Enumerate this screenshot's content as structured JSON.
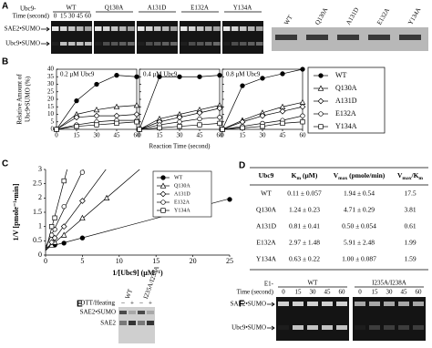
{
  "chart_data": [
    {
      "type": "line",
      "ylabel": [
        "Relative Amount of",
        "Ubc9•SUMO (%)"
      ],
      "xlabel": "Reaction Time (second)",
      "x": [
        0,
        15,
        30,
        45,
        60
      ],
      "xlim": [
        0,
        60
      ],
      "xticks": [
        0,
        15,
        30,
        45,
        60
      ],
      "ylim": [
        0,
        40
      ],
      "yticks": [
        0,
        5,
        10,
        15,
        20,
        25,
        30,
        35,
        40
      ],
      "legend": [
        {
          "name": "WT",
          "marker": "circle-filled"
        },
        {
          "name": "Q130A",
          "marker": "triangle"
        },
        {
          "name": "A131D",
          "marker": "diamond"
        },
        {
          "name": "E132A",
          "marker": "circle"
        },
        {
          "name": "Y134A",
          "marker": "square"
        }
      ],
      "panels": [
        {
          "title": "0.2 μM Ubc9",
          "series": [
            {
              "values": [
                0,
                19,
                30,
                36,
                35
              ]
            },
            {
              "values": [
                0,
                10,
                13,
                15,
                16
              ]
            },
            {
              "values": [
                0,
                8,
                9,
                9,
                10
              ]
            },
            {
              "values": [
                0,
                3,
                5,
                6,
                6
              ]
            },
            {
              "values": [
                0,
                2,
                3,
                4,
                5
              ]
            }
          ]
        },
        {
          "title": "0.4 μM Ubc9",
          "series": [
            {
              "values": [
                0,
                35,
                35,
                35,
                36
              ]
            },
            {
              "values": [
                0,
                7,
                10,
                13,
                16
              ]
            },
            {
              "values": [
                0,
                5,
                8,
                11,
                14
              ]
            },
            {
              "values": [
                0,
                3,
                5,
                7,
                8
              ]
            },
            {
              "values": [
                0,
                1,
                2,
                3,
                4
              ]
            }
          ]
        },
        {
          "title": "0.8 μM Ubc9",
          "series": [
            {
              "values": [
                0,
                29,
                34,
                37,
                40
              ]
            },
            {
              "values": [
                0,
                6,
                11,
                15,
                18
              ]
            },
            {
              "values": [
                0,
                5,
                9,
                12,
                15
              ]
            },
            {
              "values": [
                0,
                2,
                4,
                6,
                9
              ]
            },
            {
              "values": [
                0,
                1,
                2,
                4,
                5
              ]
            }
          ]
        }
      ]
    },
    {
      "type": "scatter",
      "ylabel": "1/V [pmole⁻¹•min]",
      "xlabel": "1/[Ubc9] (μM⁻¹)",
      "xlim": [
        0,
        25
      ],
      "xticks": [
        0,
        5,
        10,
        15,
        20,
        25
      ],
      "ylim": [
        0,
        3
      ],
      "yticks": [
        0,
        0.5,
        1,
        1.5,
        2,
        2.5,
        3
      ],
      "trendline": true,
      "series": [
        {
          "name": "WT",
          "marker": "circle-filled",
          "x": [
            1.25,
            2.5,
            5,
            16.7,
            25
          ],
          "values": [
            0.35,
            0.42,
            0.6,
            1.45,
            1.95
          ]
        },
        {
          "name": "Q130A",
          "marker": "triangle",
          "x": [
            0.83,
            1.25,
            2.5,
            5,
            8.3
          ],
          "values": [
            0.35,
            0.45,
            0.7,
            1.3,
            2.0
          ]
        },
        {
          "name": "A131D",
          "marker": "diamond",
          "x": [
            0.83,
            1.25,
            2.5,
            5
          ],
          "values": [
            0.45,
            0.6,
            1.0,
            1.9
          ]
        },
        {
          "name": "E132A",
          "marker": "circle",
          "x": [
            0.83,
            1.25,
            2.5,
            5
          ],
          "values": [
            0.7,
            0.9,
            1.7,
            2.9
          ]
        },
        {
          "name": "Y134A",
          "marker": "square",
          "x": [
            0.83,
            1.25,
            2.5
          ],
          "values": [
            1.0,
            1.3,
            2.6
          ]
        }
      ]
    }
  ],
  "panel_letters": {
    "A": "A",
    "B": "B",
    "C": "C",
    "D": "D",
    "E": "E",
    "F": "F"
  },
  "gel_a": {
    "prefix": "Ubc9-",
    "time_label": "Time (second)",
    "times": [
      "0",
      "15",
      "30",
      "45",
      "60"
    ],
    "groups": [
      "WT",
      "Q130A",
      "A131D",
      "E132A",
      "Y134A"
    ],
    "bands": [
      "SAE2•SUMO",
      "Ubc9•SUMO"
    ],
    "side_lanes": [
      "WT",
      "Q130A",
      "A131D",
      "E132A",
      "Y134A"
    ]
  },
  "table": {
    "header": [
      [
        {
          "t": "Ubc9"
        }
      ],
      [
        {
          "t": "K"
        },
        {
          "sub": "m"
        },
        {
          "t": " (μM)"
        }
      ],
      [
        {
          "t": "V"
        },
        {
          "sub": "max"
        },
        {
          "t": " (pmole/min)"
        }
      ],
      [
        {
          "t": "V"
        },
        {
          "sub": "max"
        },
        {
          "t": "/K"
        },
        {
          "sub": "m"
        }
      ]
    ],
    "rows": [
      [
        "WT",
        "0.11 ± 0.057",
        "1.94 ± 0.54",
        "17.5"
      ],
      [
        "Q130A",
        "1.24 ± 0.23",
        "4.71 ± 0.29",
        "3.81"
      ],
      [
        "A131D",
        "0.81 ± 0.41",
        "0.50 ± 0.054",
        "0.61"
      ],
      [
        "E132A",
        "2.97 ± 1.48",
        "5.91 ± 2.48",
        "1.99"
      ],
      [
        "Y134A",
        "0.63 ± 0.22",
        "1.00 ± 0.087",
        "1.59"
      ]
    ]
  },
  "gel_e": {
    "label": "DTT/Heating",
    "signs": [
      "–",
      "+",
      "–",
      "+"
    ],
    "lanes": [
      "WT",
      "I235A/I238A"
    ],
    "bands": [
      "SAE2•SUMO",
      "SAE2"
    ]
  },
  "gel_f": {
    "prefix": "E1-",
    "time_label": "Time (second)",
    "times": [
      "0",
      "15",
      "30",
      "45",
      "60"
    ],
    "groups": [
      "WT",
      "I235A/I238A"
    ],
    "bands": [
      "SAE2•SUMO",
      "Ubc9•SUMO"
    ]
  }
}
